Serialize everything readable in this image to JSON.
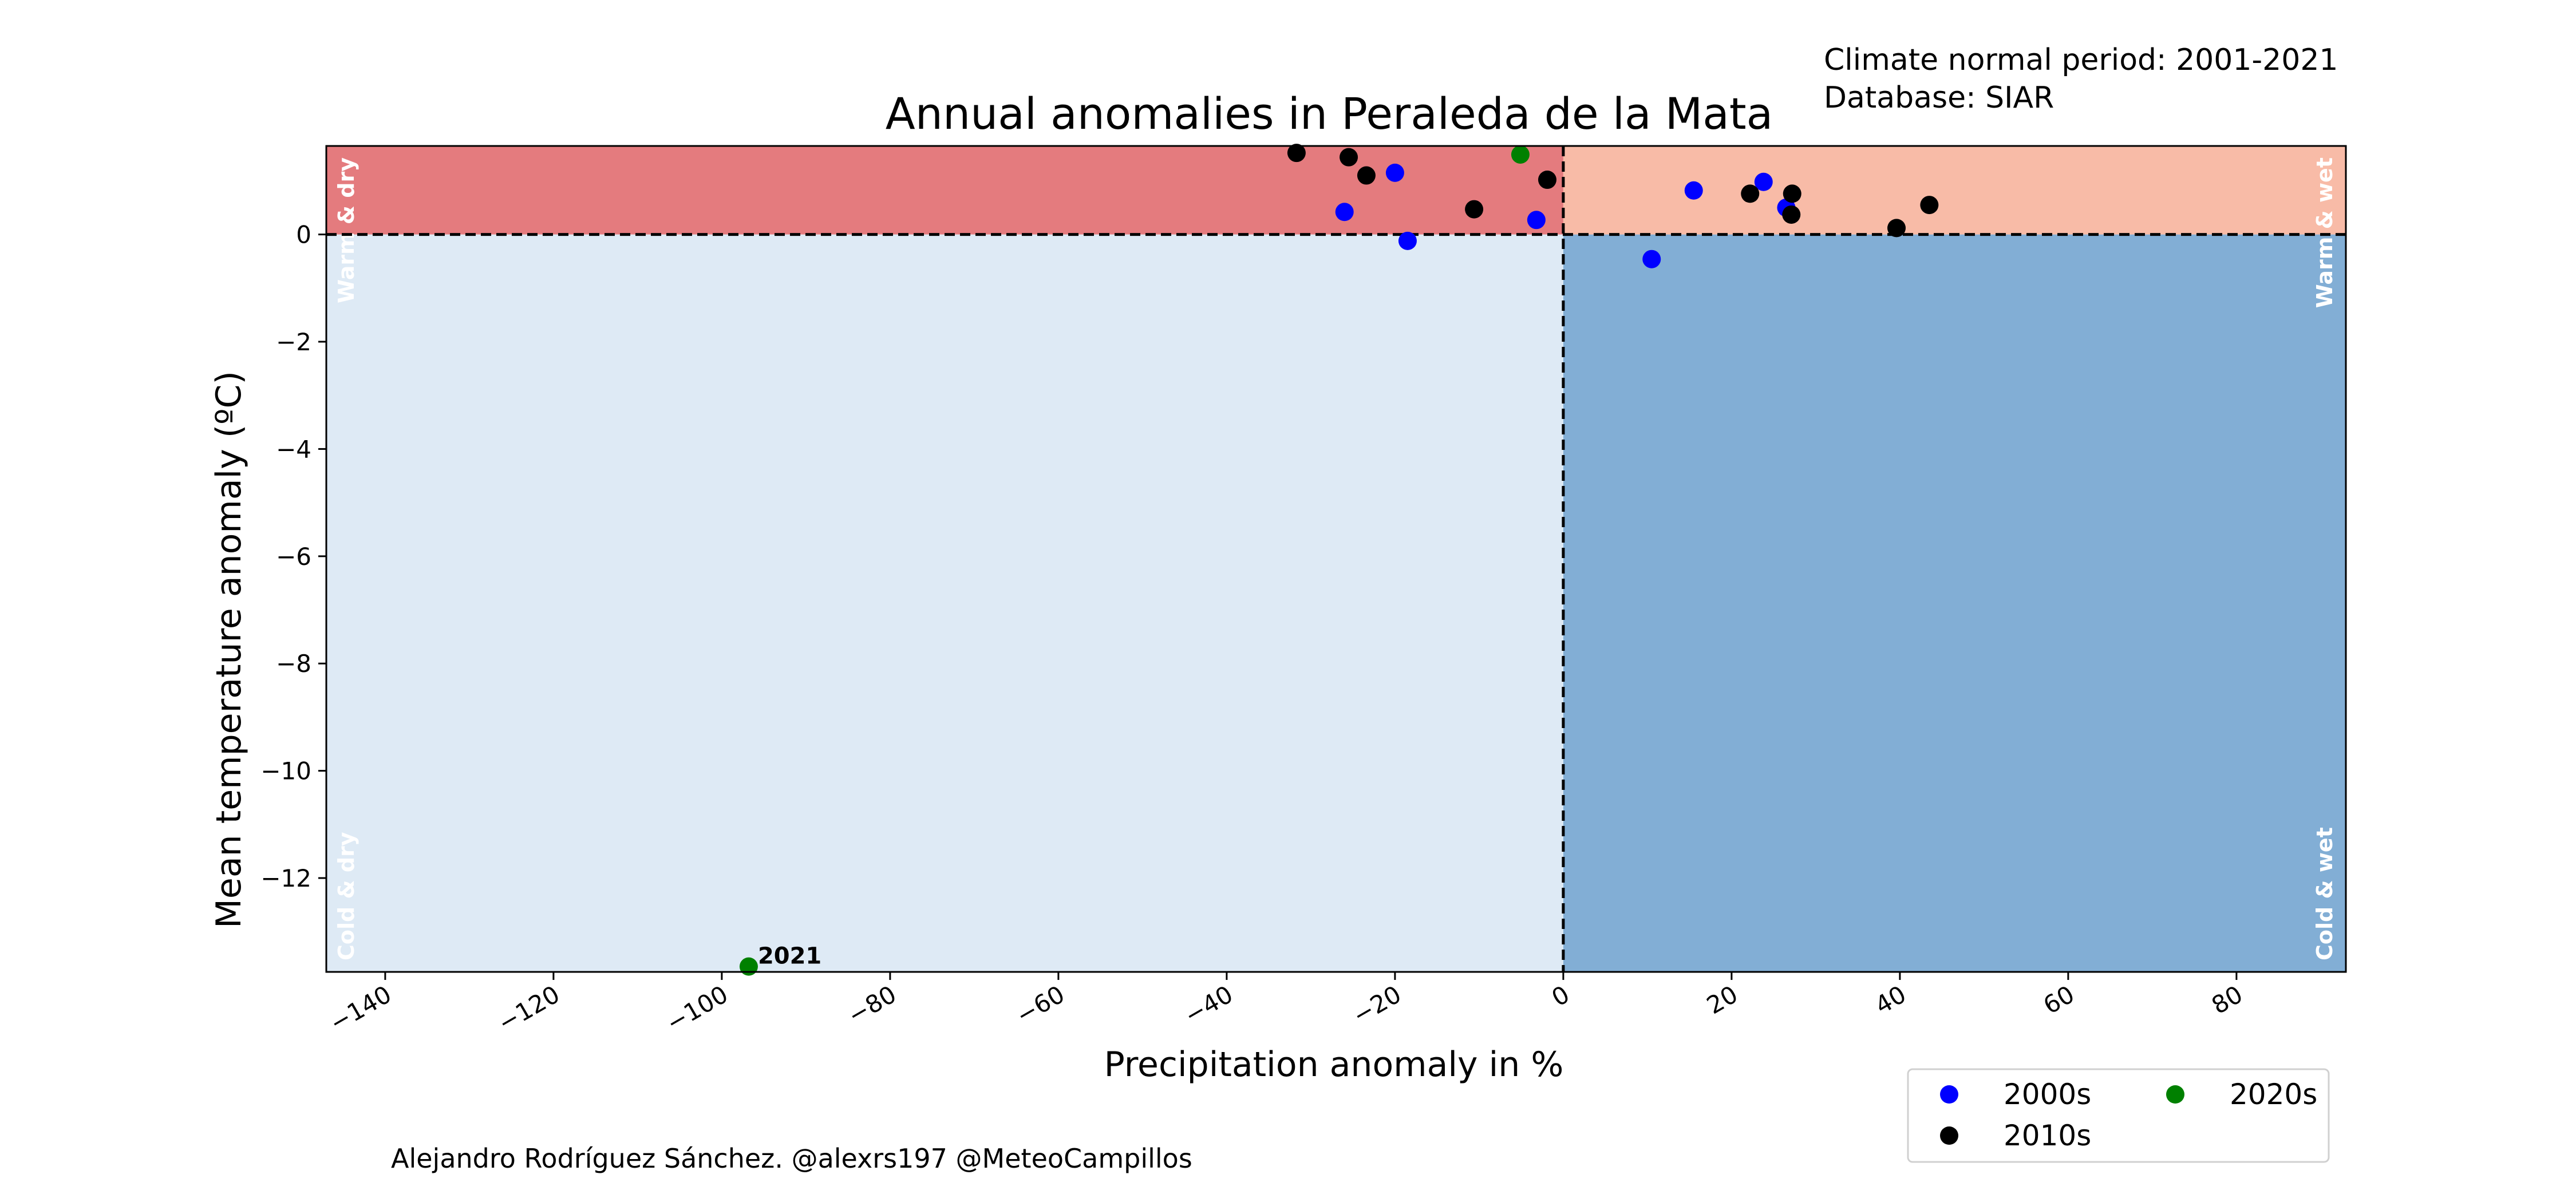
{
  "header": {
    "title": "Annual anomalies in Peraleda de la Mata",
    "note_line1": "Climate normal period: 2001-2021",
    "note_line2": "Database: SIAR"
  },
  "footer": {
    "credit": "Alejandro Rodríguez Sánchez. @alexrs197 @MeteoCampillos"
  },
  "quadrants": {
    "warm_dry": "Warm & dry",
    "warm_wet": "Warm & wet",
    "cold_dry": "Cold & dry",
    "cold_wet": "Cold & wet",
    "colors": {
      "warm_dry": "#e47b7e",
      "warm_wet": "#f8bba7",
      "cold_dry": "#deeaf5",
      "cold_wet": "#82aed5"
    }
  },
  "chart_data": {
    "type": "scatter",
    "xlabel": "Precipitation anomaly in %",
    "ylabel": "Mean temperature anomaly (ºC)",
    "xlim": [
      -147,
      93
    ],
    "ylim": [
      -13.75,
      1.65
    ],
    "xticks": [
      -140,
      -120,
      -100,
      -80,
      -60,
      -40,
      -20,
      0,
      20,
      40,
      60,
      80
    ],
    "yticks": [
      -12,
      -10,
      -8,
      -6,
      -4,
      -2,
      0
    ],
    "grid": false,
    "legend_position": "bottom-right",
    "series": [
      {
        "name": "2000s",
        "color": "#0000ff",
        "points": [
          {
            "x": -20,
            "y": 1.15
          },
          {
            "x": -26,
            "y": 0.42
          },
          {
            "x": -18.5,
            "y": -0.12
          },
          {
            "x": -3.2,
            "y": 0.27
          },
          {
            "x": 10.5,
            "y": -0.46
          },
          {
            "x": 15.5,
            "y": 0.82
          },
          {
            "x": 23.8,
            "y": 0.98
          },
          {
            "x": 26.5,
            "y": 0.5
          }
        ]
      },
      {
        "name": "2010s",
        "color": "#000000",
        "points": [
          {
            "x": -31.7,
            "y": 1.52
          },
          {
            "x": -25.5,
            "y": 1.44
          },
          {
            "x": -23.4,
            "y": 1.1
          },
          {
            "x": -10.6,
            "y": 0.47
          },
          {
            "x": -1.9,
            "y": 1.02
          },
          {
            "x": 22.2,
            "y": 0.76
          },
          {
            "x": 27.2,
            "y": 0.76
          },
          {
            "x": 27.1,
            "y": 0.37
          },
          {
            "x": 39.6,
            "y": 0.12
          },
          {
            "x": 43.5,
            "y": 0.55
          }
        ]
      },
      {
        "name": "2020s",
        "color": "#008000",
        "points": [
          {
            "x": -5.1,
            "y": 1.49
          },
          {
            "x": -96.8,
            "y": -13.65,
            "label": "2021"
          }
        ]
      }
    ]
  }
}
